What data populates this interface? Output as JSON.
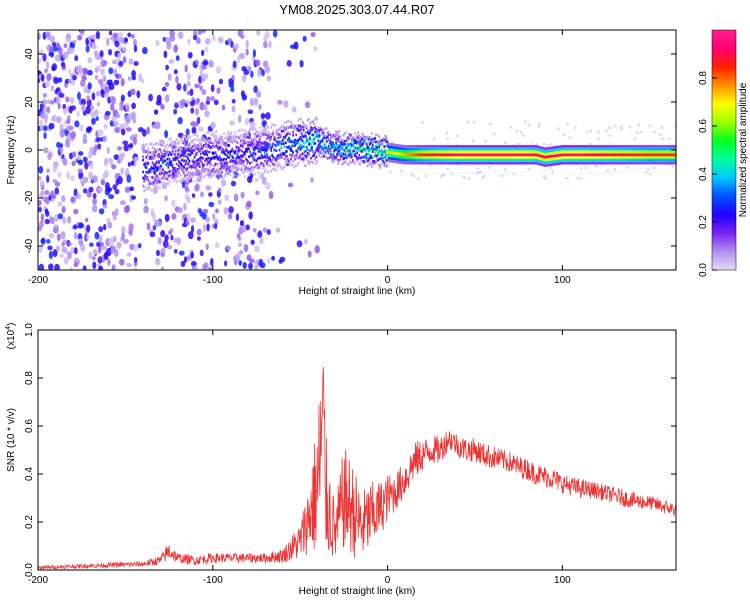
{
  "figure": {
    "title": "YM08.2025.303.07.44.R07"
  },
  "chart_data": [
    {
      "type": "heatmap",
      "panel": "spectrogram",
      "xlabel": "Height of straight line (km)",
      "ylabel": "Frequency (Hz)",
      "xlim": [
        -200,
        165
      ],
      "ylim": [
        -50,
        50
      ],
      "xticks": [
        -200,
        -100,
        0,
        100
      ],
      "yticks": [
        -40,
        -20,
        0,
        20,
        40
      ],
      "x_tick_labels": [
        "-200",
        "-100",
        "0",
        "100"
      ],
      "y_tick_labels": [
        "-40",
        "-20",
        "0",
        "20",
        "40"
      ],
      "colorbar": {
        "label": "Normalized spectral amplitude",
        "range": [
          0,
          1
        ],
        "ticks": [
          0.0,
          0.2,
          0.4,
          0.6,
          0.8
        ],
        "tick_labels": [
          "0.0",
          "0.2",
          "0.4",
          "0.6",
          "0.8"
        ],
        "colors": [
          "#e8d8f4",
          "#b090f0",
          "#7a22f0",
          "#2000ff",
          "#0050ff",
          "#00c8ff",
          "#00ffa0",
          "#00ff20",
          "#a0ff00",
          "#ffff00",
          "#ff9000",
          "#ff2000",
          "#ff0070",
          "#ff2090"
        ]
      },
      "ridge": {
        "x": [
          -140,
          -130,
          -120,
          -110,
          -100,
          -90,
          -80,
          -70,
          -60,
          -50,
          -40,
          -35,
          -30,
          -20,
          -10,
          0,
          10,
          20,
          30,
          40,
          50,
          60,
          70,
          80,
          85,
          90,
          100,
          110,
          120,
          130,
          140,
          150,
          165
        ],
        "freq": [
          -8,
          -6,
          -4,
          -3,
          -2,
          -2,
          -1,
          0,
          2,
          3,
          4,
          2,
          1,
          1,
          0,
          -1,
          -2,
          -2,
          -2,
          -2,
          -2,
          -2,
          -2,
          -2,
          -2,
          -3,
          -2,
          -2,
          -2,
          -2,
          -2,
          -2,
          -2
        ],
        "amplitude": [
          0.3,
          0.3,
          0.25,
          0.25,
          0.3,
          0.28,
          0.28,
          0.3,
          0.35,
          0.4,
          0.45,
          0.4,
          0.45,
          0.5,
          0.55,
          0.65,
          0.75,
          0.85,
          0.9,
          0.95,
          0.95,
          0.95,
          0.95,
          0.95,
          0.92,
          0.9,
          0.95,
          0.95,
          0.92,
          0.9,
          0.88,
          0.85,
          0.85
        ]
      }
    },
    {
      "type": "line",
      "panel": "snr",
      "xlabel": "Height of straight line (km)",
      "ylabel": "SNR (10 * v/v)",
      "scale_label": "(x10",
      "scale_exponent": "4",
      "scale_suffix": ")",
      "xlim": [
        -200,
        165
      ],
      "ylim": [
        0,
        1.0
      ],
      "xticks": [
        -200,
        -100,
        0,
        100
      ],
      "yticks": [
        0.0,
        0.2,
        0.4,
        0.6,
        0.8,
        1.0
      ],
      "x_tick_labels": [
        "-200",
        "-100",
        "0",
        "100"
      ],
      "y_tick_labels": [
        "0.0",
        "0.2",
        "0.4",
        "0.6",
        "0.8",
        "1.0"
      ],
      "series": [
        {
          "name": "SNR",
          "color": "#ee3333",
          "x": [
            -200,
            -180,
            -160,
            -140,
            -130,
            -125,
            -120,
            -110,
            -100,
            -90,
            -80,
            -70,
            -60,
            -50,
            -45,
            -40,
            -37,
            -35,
            -30,
            -25,
            -20,
            -15,
            -10,
            -5,
            0,
            5,
            10,
            15,
            20,
            25,
            30,
            35,
            40,
            45,
            50,
            55,
            60,
            65,
            70,
            75,
            80,
            85,
            90,
            95,
            100,
            110,
            120,
            130,
            140,
            150,
            160,
            165
          ],
          "y": [
            0.01,
            0.015,
            0.02,
            0.025,
            0.04,
            0.08,
            0.05,
            0.04,
            0.05,
            0.05,
            0.05,
            0.05,
            0.06,
            0.12,
            0.22,
            0.35,
            0.6,
            0.3,
            0.15,
            0.3,
            0.25,
            0.18,
            0.22,
            0.25,
            0.3,
            0.33,
            0.38,
            0.45,
            0.48,
            0.5,
            0.5,
            0.55,
            0.52,
            0.5,
            0.5,
            0.48,
            0.47,
            0.46,
            0.45,
            0.43,
            0.42,
            0.4,
            0.39,
            0.38,
            0.36,
            0.34,
            0.33,
            0.31,
            0.29,
            0.28,
            0.26,
            0.25
          ],
          "noise": [
            0.008,
            0.008,
            0.01,
            0.012,
            0.02,
            0.04,
            0.02,
            0.02,
            0.02,
            0.02,
            0.02,
            0.02,
            0.03,
            0.08,
            0.15,
            0.3,
            0.45,
            0.25,
            0.12,
            0.22,
            0.2,
            0.15,
            0.15,
            0.12,
            0.1,
            0.08,
            0.08,
            0.08,
            0.07,
            0.06,
            0.06,
            0.05,
            0.05,
            0.05,
            0.05,
            0.05,
            0.05,
            0.045,
            0.045,
            0.045,
            0.045,
            0.045,
            0.045,
            0.045,
            0.04,
            0.04,
            0.035,
            0.035,
            0.035,
            0.03,
            0.03,
            0.03
          ]
        }
      ]
    }
  ]
}
